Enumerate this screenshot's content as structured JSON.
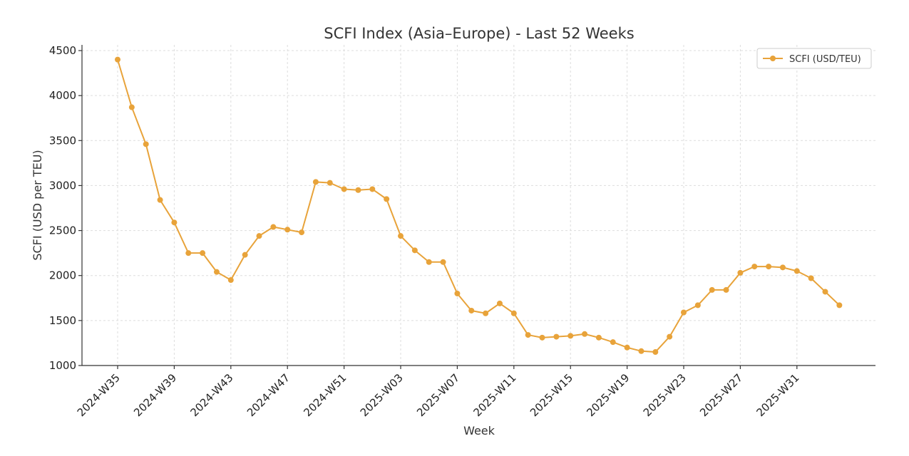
{
  "chart_data": {
    "type": "line",
    "title": "SCFI Index (Asia–Europe) - Last 52 Weeks",
    "xlabel": "Week",
    "ylabel": "SCFI (USD per TEU)",
    "ylim": [
      1000,
      4500
    ],
    "yticks": [
      1000,
      1500,
      2000,
      2500,
      3000,
      3500,
      4000,
      4500
    ],
    "grid": true,
    "legend_position": "top-right",
    "line_color": "#e8a33a",
    "x": [
      "2024-W35",
      "2024-W36",
      "2024-W37",
      "2024-W38",
      "2024-W39",
      "2024-W40",
      "2024-W41",
      "2024-W42",
      "2024-W43",
      "2024-W44",
      "2024-W45",
      "2024-W46",
      "2024-W47",
      "2024-W48",
      "2024-W49",
      "2024-W50",
      "2024-W51",
      "2024-W52",
      "2025-W01",
      "2025-W02",
      "2025-W03",
      "2025-W04",
      "2025-W05",
      "2025-W06",
      "2025-W07",
      "2025-W08",
      "2025-W09",
      "2025-W10",
      "2025-W11",
      "2025-W12",
      "2025-W13",
      "2025-W14",
      "2025-W15",
      "2025-W16",
      "2025-W17",
      "2025-W18",
      "2025-W19",
      "2025-W20",
      "2025-W21",
      "2025-W22",
      "2025-W23",
      "2025-W24",
      "2025-W25",
      "2025-W26",
      "2025-W27",
      "2025-W28",
      "2025-W29",
      "2025-W30",
      "2025-W31",
      "2025-W32",
      "2025-W33",
      "2025-W34"
    ],
    "xtick_labels": [
      "2024-W35",
      "2024-W39",
      "2024-W43",
      "2024-W47",
      "2024-W51",
      "2025-W03",
      "2025-W07",
      "2025-W11",
      "2025-W15",
      "2025-W19",
      "2025-W23",
      "2025-W27",
      "2025-W31"
    ],
    "series": [
      {
        "name": "SCFI (USD/TEU)",
        "values": [
          4400,
          3870,
          3460,
          2840,
          2590,
          2250,
          2250,
          2040,
          1950,
          2230,
          2440,
          2540,
          2510,
          2480,
          3040,
          3030,
          2960,
          2950,
          2960,
          2850,
          2440,
          2280,
          2150,
          2150,
          1800,
          1610,
          1580,
          1690,
          1580,
          1340,
          1310,
          1320,
          1330,
          1350,
          1310,
          1260,
          1200,
          1160,
          1150,
          1320,
          1590,
          1670,
          1840,
          1840,
          2030,
          2100,
          2100,
          2090,
          2050,
          1970,
          1820,
          1670
        ]
      }
    ]
  }
}
